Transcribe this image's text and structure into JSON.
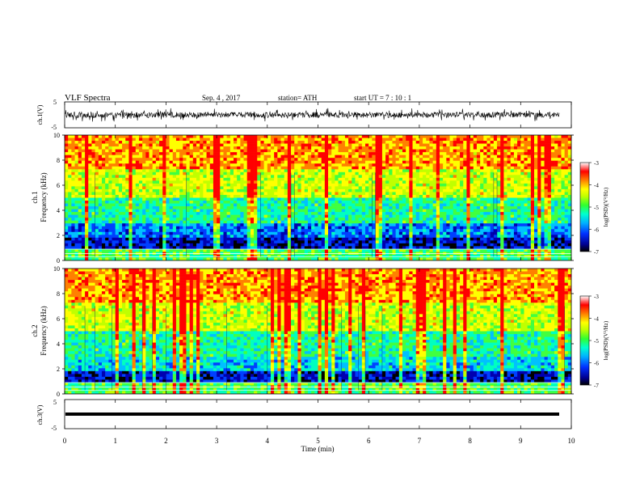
{
  "header": {
    "title": "VLF  Spectra",
    "date": "Sep. 4  , 2017",
    "station": "station= ATH",
    "start": "start  UT  =    7  : 10 : 1"
  },
  "chart_data": [
    {
      "type": "line",
      "panel": "ch1-waveform",
      "ylabel": "ch.1(V)",
      "ylim": [
        -5,
        5
      ],
      "yticks": [
        "5",
        "-5"
      ],
      "xlim": [
        0,
        10
      ],
      "trace_color": "#000000"
    },
    {
      "type": "heatmap",
      "panel": "ch1-spectrogram",
      "ylabel_line1": "ch.1",
      "ylabel_line2": "Frequency (kHz)",
      "ylim": [
        0,
        10
      ],
      "yticks": [
        "0",
        "2",
        "4",
        "6",
        "8",
        "10"
      ],
      "xlim": [
        0,
        10
      ],
      "colorbar": {
        "label": "log(PSD)(V²/Hz)",
        "ticks": [
          "-3",
          "-4",
          "-5",
          "-6",
          "-7"
        ],
        "range": [
          -7,
          -3
        ]
      }
    },
    {
      "type": "heatmap",
      "panel": "ch2-spectrogram",
      "ylabel_line1": "ch.2",
      "ylabel_line2": "Frequency (kHz)",
      "ylim": [
        0,
        10
      ],
      "yticks": [
        "0",
        "2",
        "4",
        "6",
        "8",
        "10"
      ],
      "xlim": [
        0,
        10
      ],
      "colorbar": {
        "label": "log(PSD)(V²/Hz)",
        "ticks": [
          "-3",
          "-4",
          "-5",
          "-6",
          "-7"
        ],
        "range": [
          -7,
          -3
        ]
      }
    },
    {
      "type": "line",
      "panel": "ch3-waveform",
      "ylabel": "ch.3(V)",
      "ylim": [
        -5,
        5
      ],
      "yticks": [
        "5",
        "-5"
      ],
      "xlim": [
        0,
        10
      ],
      "xlabel": "Time  (min)",
      "xticks": [
        "0",
        "1",
        "2",
        "3",
        "4",
        "5",
        "6",
        "7",
        "8",
        "9",
        "10"
      ],
      "trace_color": "#000000"
    }
  ],
  "colors": {
    "scale": [
      "#000000",
      "#0000b0",
      "#0040ff",
      "#00c0ff",
      "#00ffc0",
      "#40ff40",
      "#c0ff00",
      "#ffff00",
      "#ff8000",
      "#ff0000",
      "#ffffff"
    ]
  }
}
